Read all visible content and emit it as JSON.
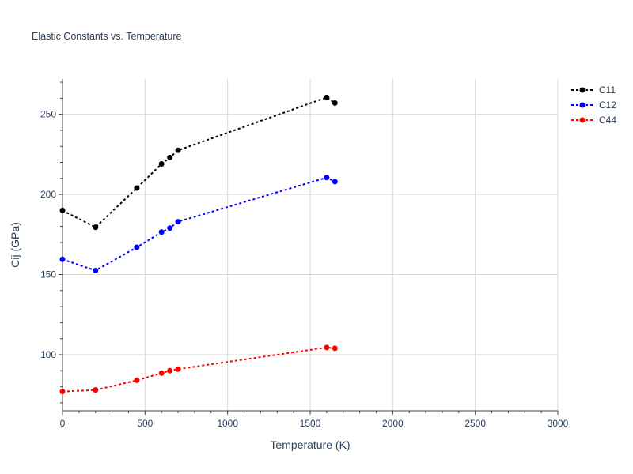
{
  "chart_data": {
    "type": "scatter",
    "title": "Elastic Constants vs. Temperature",
    "xlabel": "Temperature (K)",
    "ylabel": "Cij (GPa)",
    "xlim": [
      0,
      3000
    ],
    "ylim": [
      65,
      272
    ],
    "x_ticks": [
      0,
      500,
      1000,
      1500,
      2000,
      2500,
      3000
    ],
    "y_ticks": [
      100,
      150,
      200,
      250
    ],
    "grid": true,
    "legend_position": "top-right",
    "series": [
      {
        "name": "C11",
        "color": "#000000",
        "x": [
          0,
          200,
          450,
          600,
          650,
          700,
          1600,
          1650
        ],
        "y": [
          190,
          179.5,
          204,
          219,
          223,
          227.5,
          260.5,
          257
        ]
      },
      {
        "name": "C12",
        "color": "#0000ff",
        "x": [
          0,
          200,
          450,
          600,
          650,
          700,
          1600,
          1650
        ],
        "y": [
          159.5,
          152.5,
          167,
          176.5,
          179,
          183,
          210.5,
          208
        ]
      },
      {
        "name": "C44",
        "color": "#ff0000",
        "x": [
          0,
          200,
          450,
          600,
          650,
          700,
          1600,
          1650
        ],
        "y": [
          77,
          78,
          84,
          88.5,
          90,
          91,
          104.5,
          104
        ]
      }
    ]
  }
}
